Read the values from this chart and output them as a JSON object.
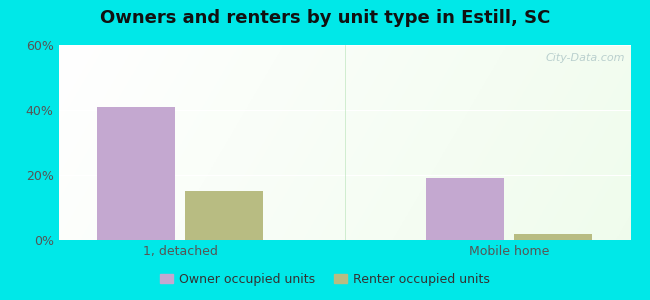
{
  "title": "Owners and renters by unit type in Estill, SC",
  "categories": [
    "1, detached",
    "Mobile home"
  ],
  "owner_values": [
    41,
    19
  ],
  "renter_values": [
    15,
    2
  ],
  "owner_color": "#c4a8d0",
  "renter_color": "#b8bc82",
  "ylim": [
    0,
    60
  ],
  "yticks": [
    0,
    20,
    40,
    60
  ],
  "ytick_labels": [
    "0%",
    "20%",
    "40%",
    "60%"
  ],
  "bar_width": 0.32,
  "background_outer": "#00e8e8",
  "legend_owner": "Owner occupied units",
  "legend_renter": "Renter occupied units",
  "watermark": "City-Data.com",
  "title_fontsize": 13,
  "tick_fontsize": 9,
  "legend_fontsize": 9,
  "x_positions": [
    0.5,
    1.85
  ],
  "xlim": [
    0.0,
    2.35
  ]
}
